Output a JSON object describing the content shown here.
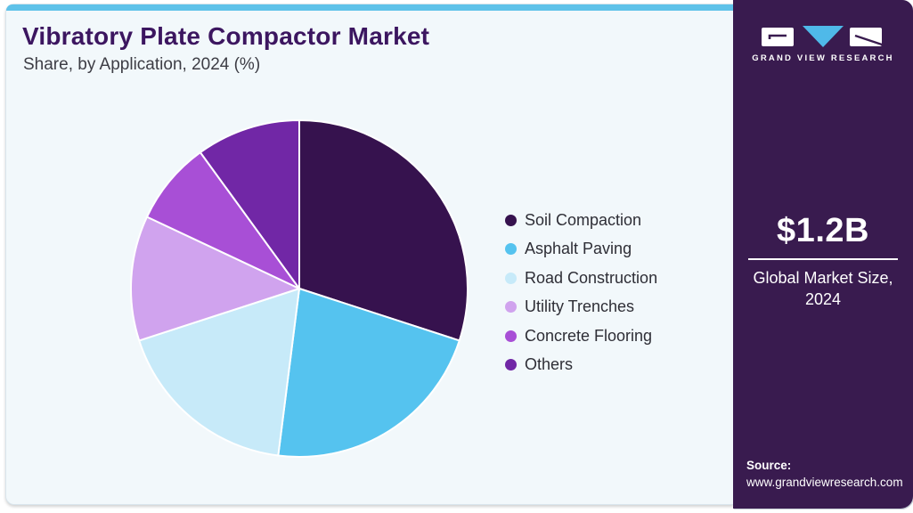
{
  "header": {
    "title": "Vibratory Plate Compactor Market",
    "subtitle": "Share, by Application, 2024 (%)"
  },
  "chart_data": {
    "type": "pie",
    "title": "Vibratory Plate Compactor Market Share, by Application, 2024 (%)",
    "values_unit": "%",
    "start_angle_deg": -90,
    "direction": "clockwise",
    "labels_shown": false,
    "legend_position": "right",
    "segments": [
      {
        "label": "Soil Compaction",
        "value": 30,
        "color": "#36124e"
      },
      {
        "label": "Asphalt Paving",
        "value": 22,
        "color": "#55c3ef"
      },
      {
        "label": "Road Construction",
        "value": 18,
        "color": "#c7eaf9"
      },
      {
        "label": "Utility Trenches",
        "value": 12,
        "color": "#d0a3ee"
      },
      {
        "label": "Concrete Flooring",
        "value": 8,
        "color": "#a84fd6"
      },
      {
        "label": "Others",
        "value": 10,
        "color": "#7127a6"
      }
    ]
  },
  "sidebar": {
    "logo_text": "GRAND VIEW RESEARCH",
    "market_size_value": "$1.2B",
    "market_size_label": "Global Market Size, 2024",
    "source_label": "Source:",
    "source_url": "www.grandviewresearch.com"
  },
  "colors": {
    "accent_blue": "#5ec2e9",
    "sidebar_bg": "#391b4f",
    "panel_bg": "#f2f8fb",
    "title_text": "#3c1660",
    "logo_triangle_blue": "#4fb9e9"
  }
}
